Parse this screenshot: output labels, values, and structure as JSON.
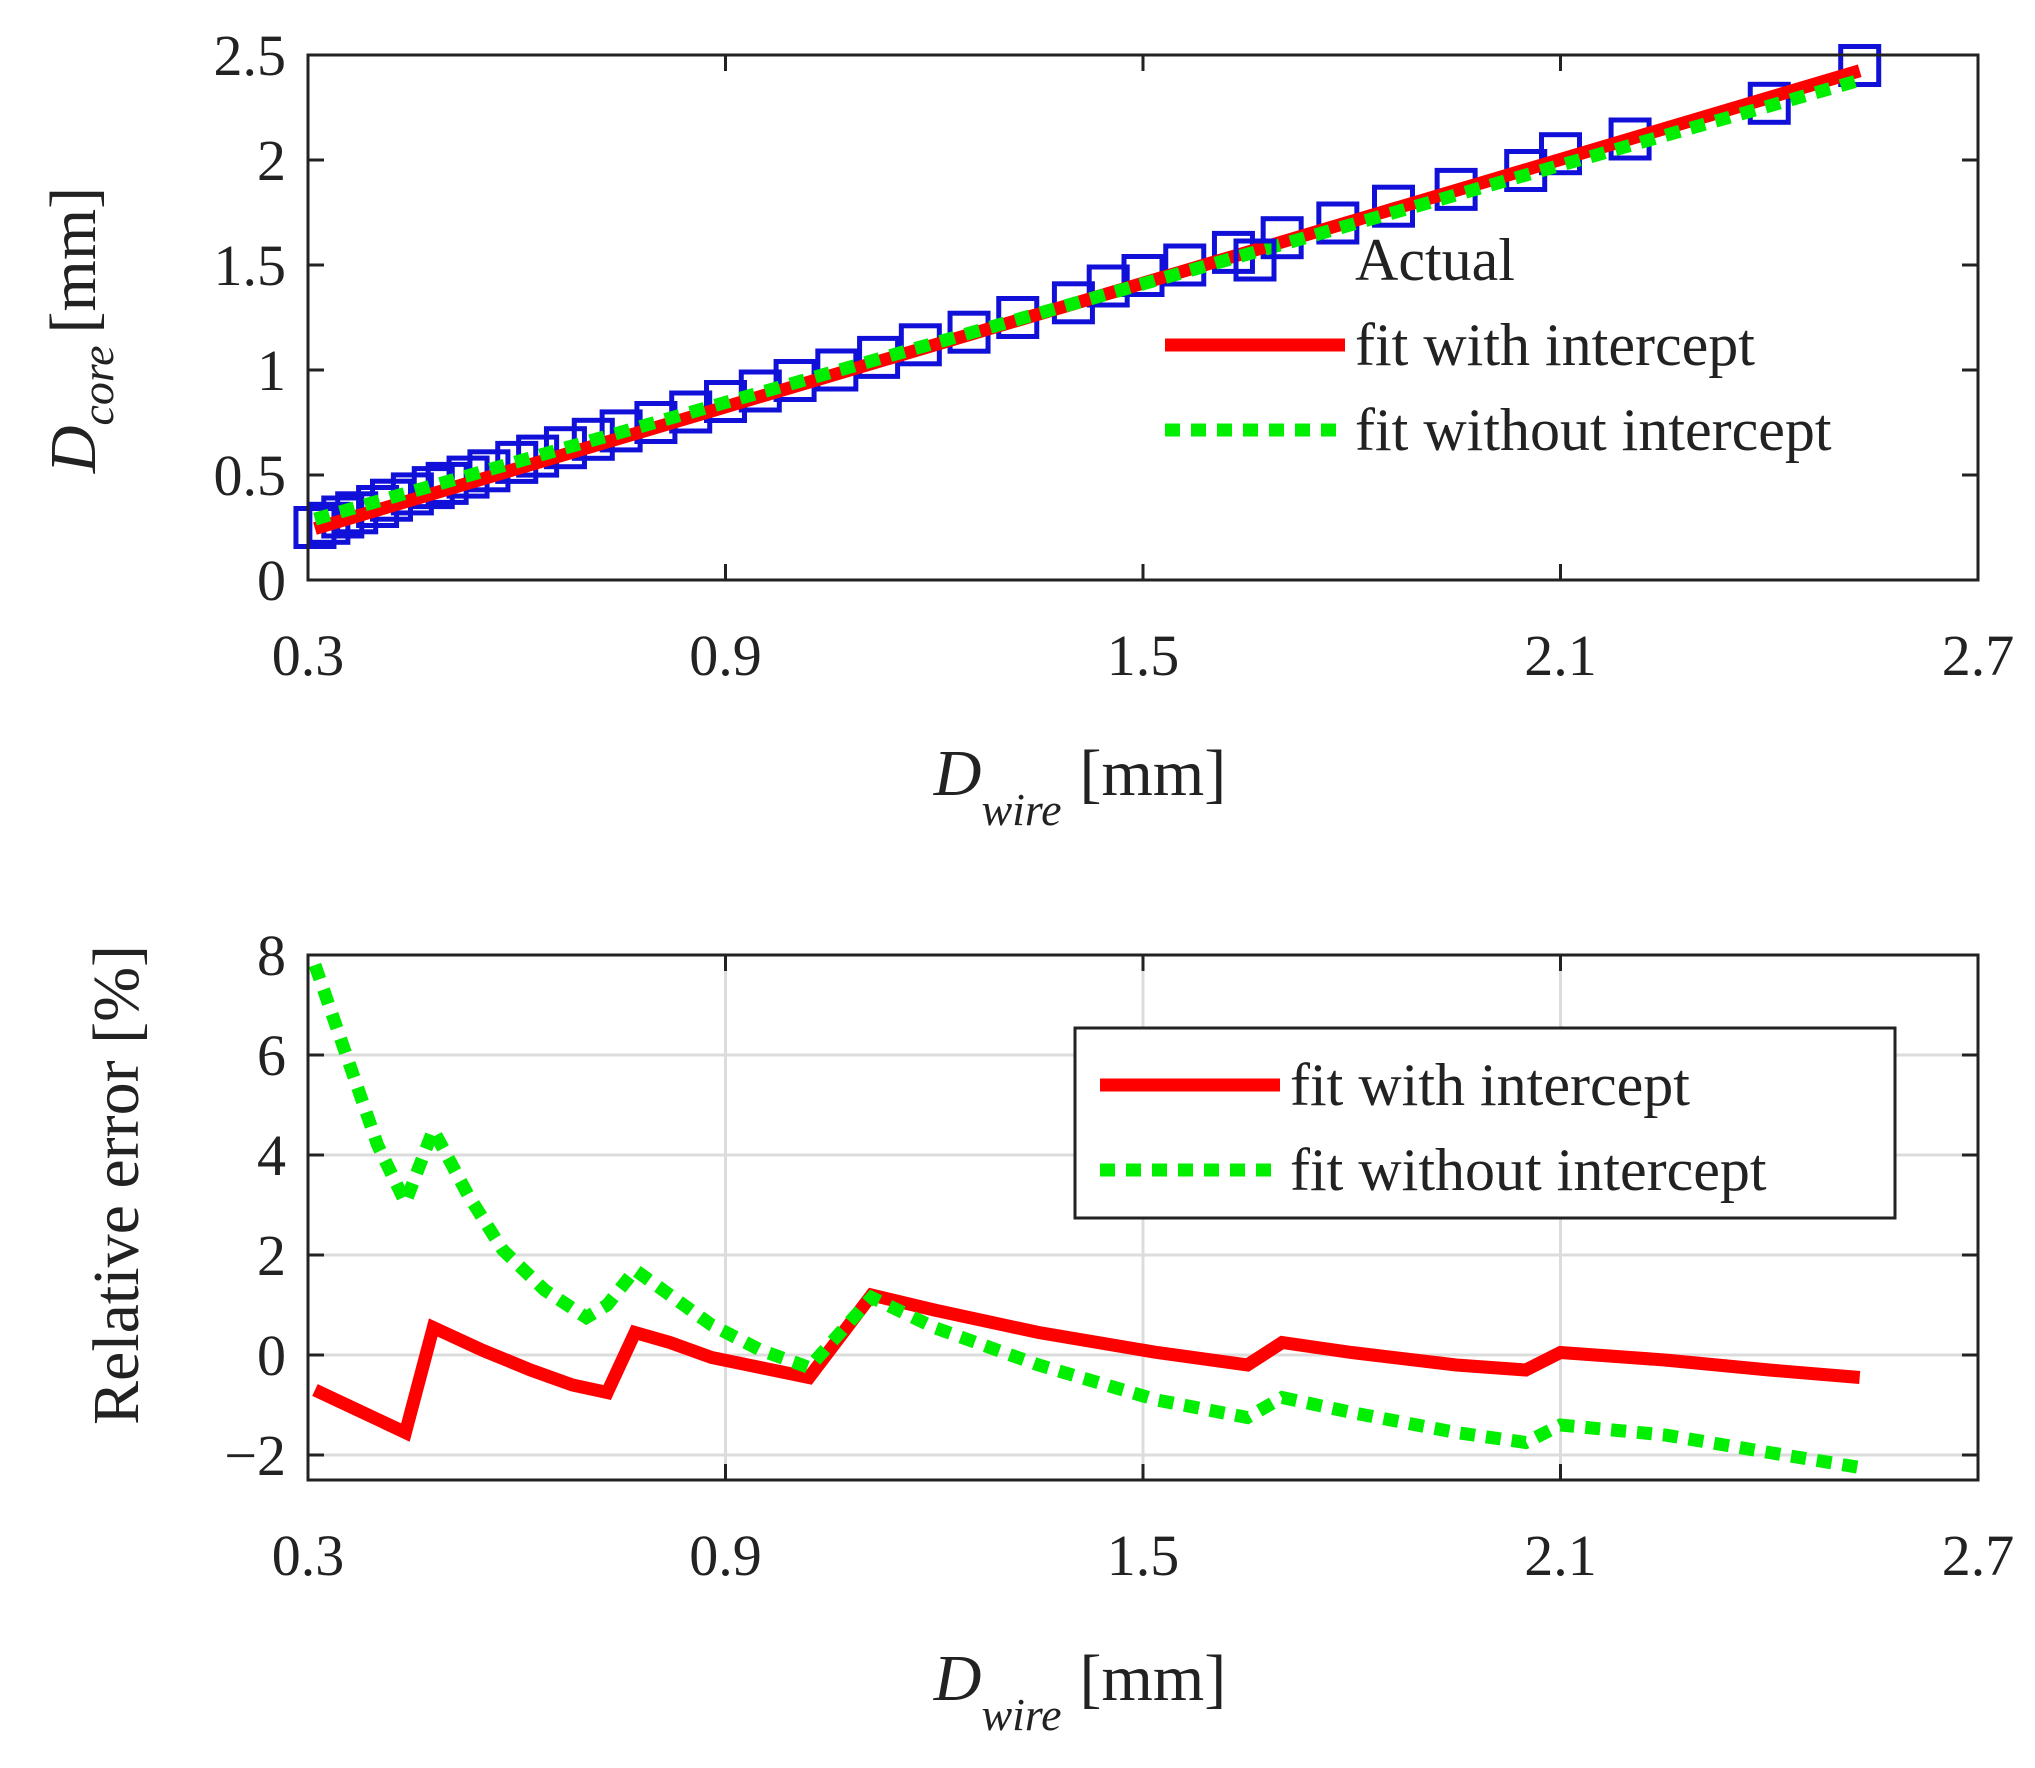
{
  "chart_data": [
    {
      "type": "line",
      "panel": "top",
      "title": "",
      "xlabel": {
        "symbol": "D",
        "subscript": "wire",
        "unit": "[mm]"
      },
      "ylabel": {
        "symbol": "D",
        "subscript": "core",
        "unit": "[mm]"
      },
      "xlim": [
        0.3,
        2.7
      ],
      "ylim": [
        0,
        2.5
      ],
      "xticks": [
        0.3,
        0.9,
        1.5,
        2.1,
        2.7
      ],
      "xtick_labels": [
        "0.3",
        "0.9",
        "1.5",
        "2.1",
        "2.7"
      ],
      "yticks": [
        0,
        0.5,
        1,
        1.5,
        2,
        2.5
      ],
      "ytick_labels": [
        "0",
        "0.5",
        "1",
        "1.5",
        "2",
        "2.5"
      ],
      "grid": false,
      "legend_position": "right-center",
      "series": [
        {
          "name": "Actual",
          "style": "markers-square",
          "color": "#1010d8",
          "x": [
            0.31,
            0.33,
            0.35,
            0.37,
            0.4,
            0.42,
            0.45,
            0.48,
            0.5,
            0.53,
            0.56,
            0.6,
            0.63,
            0.67,
            0.71,
            0.75,
            0.8,
            0.85,
            0.9,
            0.95,
            1.0,
            1.06,
            1.12,
            1.18,
            1.25,
            1.32,
            1.4,
            1.45,
            1.5,
            1.56,
            1.63,
            1.7,
            1.78,
            1.86,
            1.95,
            2.05,
            2.1,
            2.2,
            2.4,
            2.53
          ],
          "y": [
            0.25,
            0.27,
            0.3,
            0.32,
            0.35,
            0.38,
            0.41,
            0.44,
            0.46,
            0.49,
            0.52,
            0.56,
            0.59,
            0.63,
            0.67,
            0.71,
            0.75,
            0.8,
            0.85,
            0.9,
            0.95,
            1.0,
            1.06,
            1.12,
            1.18,
            1.25,
            1.32,
            1.4,
            1.45,
            1.5,
            1.56,
            1.63,
            1.7,
            1.78,
            1.86,
            1.95,
            2.03,
            2.1,
            2.27,
            2.45
          ]
        },
        {
          "name": "fit with intercept",
          "style": "solid",
          "color": "#ff0000",
          "x": [
            0.31,
            2.53
          ],
          "y": [
            0.245,
            2.425
          ]
        },
        {
          "name": "fit without intercept",
          "style": "dotted",
          "color": "#00ee00",
          "x": [
            0.31,
            2.53
          ],
          "y": [
            0.29,
            2.38
          ]
        }
      ]
    },
    {
      "type": "line",
      "panel": "bottom",
      "title": "",
      "xlabel": {
        "symbol": "D",
        "subscript": "wire",
        "unit": "[mm]"
      },
      "ylabel": "Relative error [%]",
      "xlim": [
        0.3,
        2.7
      ],
      "ylim": [
        -2.5,
        8
      ],
      "xticks": [
        0.3,
        0.9,
        1.5,
        2.1,
        2.7
      ],
      "xtick_labels": [
        "0.3",
        "0.9",
        "1.5",
        "2.1",
        "2.7"
      ],
      "yticks": [
        -2,
        0,
        2,
        4,
        6,
        8
      ],
      "ytick_labels": [
        "−2",
        "0",
        "2",
        "4",
        "6",
        "8"
      ],
      "grid": true,
      "legend_position": "top-right",
      "series": [
        {
          "name": "fit with intercept",
          "style": "solid",
          "color": "#ff0000",
          "x": [
            0.31,
            0.44,
            0.48,
            0.55,
            0.62,
            0.68,
            0.73,
            0.77,
            0.82,
            0.88,
            0.95,
            1.02,
            1.11,
            1.2,
            1.35,
            1.52,
            1.65,
            1.7,
            1.8,
            1.95,
            2.05,
            2.1,
            2.25,
            2.4,
            2.53
          ],
          "y": [
            -0.7,
            -1.55,
            0.55,
            0.1,
            -0.3,
            -0.6,
            -0.75,
            0.45,
            0.25,
            -0.05,
            -0.25,
            -0.45,
            1.2,
            0.9,
            0.45,
            0.05,
            -0.2,
            0.25,
            0.05,
            -0.2,
            -0.3,
            0.05,
            -0.1,
            -0.3,
            -0.45
          ]
        },
        {
          "name": "fit without intercept",
          "style": "dotted",
          "color": "#00ee00",
          "x": [
            0.31,
            0.36,
            0.4,
            0.44,
            0.48,
            0.53,
            0.58,
            0.64,
            0.7,
            0.73,
            0.77,
            0.82,
            0.88,
            0.95,
            1.02,
            1.11,
            1.2,
            1.35,
            1.52,
            1.65,
            1.7,
            1.8,
            1.95,
            2.05,
            2.1,
            2.25,
            2.4,
            2.53
          ],
          "y": [
            7.8,
            5.8,
            4.2,
            3.05,
            4.5,
            3.2,
            2.1,
            1.3,
            0.75,
            1.0,
            1.7,
            1.2,
            0.6,
            0.1,
            -0.25,
            1.15,
            0.55,
            -0.2,
            -0.9,
            -1.25,
            -0.85,
            -1.15,
            -1.55,
            -1.75,
            -1.4,
            -1.6,
            -1.95,
            -2.25
          ]
        }
      ]
    }
  ]
}
